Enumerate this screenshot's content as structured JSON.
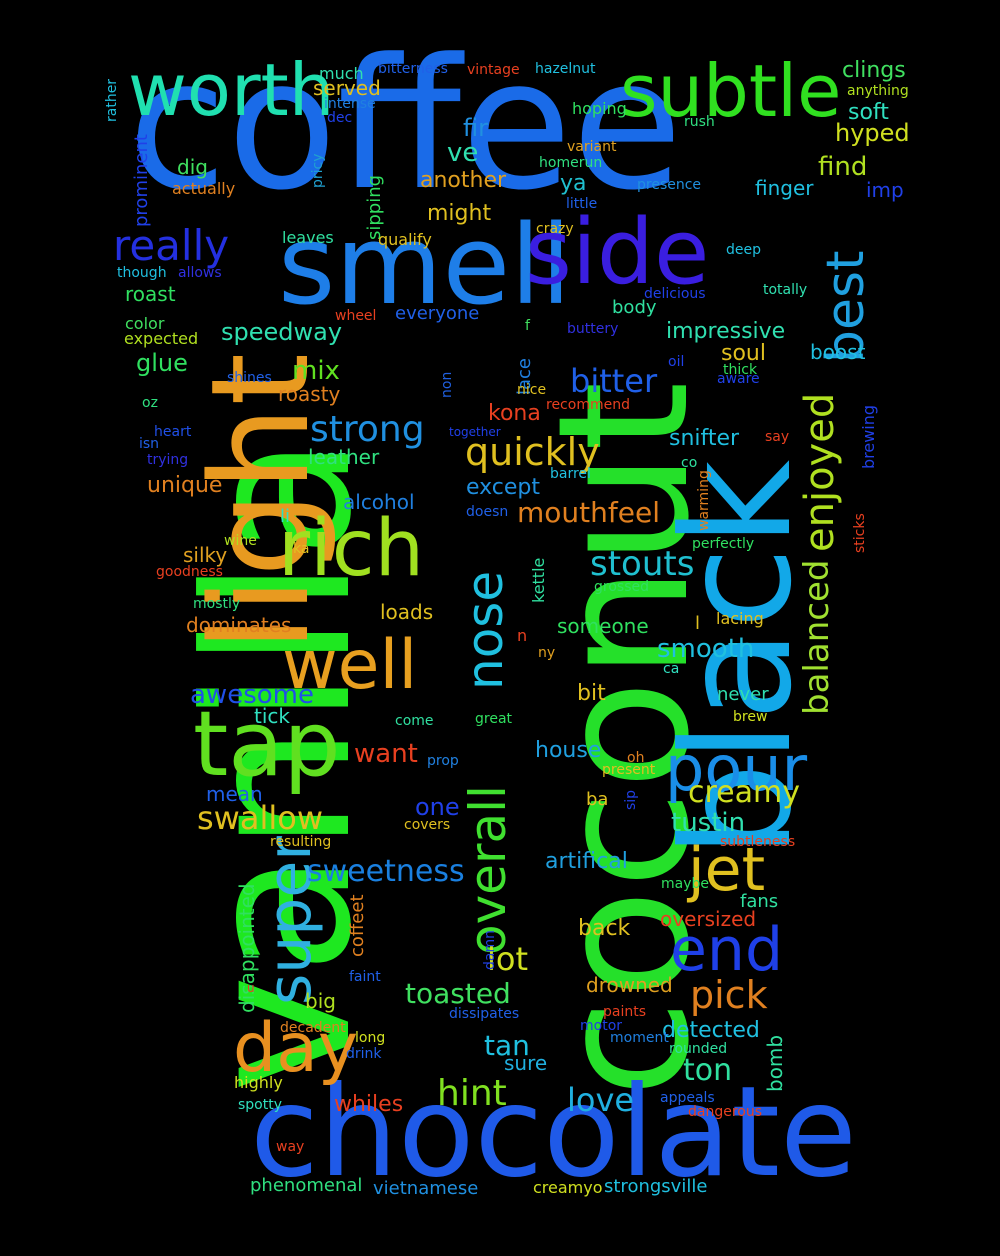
{
  "words": [
    {
      "text": "coffee",
      "color": "#1a6be8",
      "rotate": false
    },
    {
      "text": "vanilla",
      "color": "#1ee820",
      "rotate": true
    },
    {
      "text": "coconut",
      "color": "#25e02a",
      "rotate": true
    },
    {
      "text": "black",
      "color": "#12a8e8",
      "rotate": true
    },
    {
      "text": "chocolate",
      "color": "#1f5ae8",
      "rotate": false
    },
    {
      "text": "light",
      "color": "#e89a20",
      "rotate": true
    },
    {
      "text": "smell",
      "color": "#1e7ee8",
      "rotate": false
    },
    {
      "text": "side",
      "color": "#3a1ee0",
      "rotate": false
    },
    {
      "text": "subtle",
      "color": "#30e020",
      "rotate": false
    },
    {
      "text": "worth",
      "color": "#20e0b0",
      "rotate": false
    },
    {
      "text": "tap",
      "color": "#60e020",
      "rotate": false
    },
    {
      "text": "rich",
      "color": "#a0e020",
      "rotate": false
    },
    {
      "text": "well",
      "color": "#e8a020",
      "rotate": false
    },
    {
      "text": "day",
      "color": "#e89020",
      "rotate": false
    },
    {
      "text": "super",
      "color": "#30b0e0",
      "rotate": true
    },
    {
      "text": "overall",
      "color": "#40e030",
      "rotate": true
    },
    {
      "text": "nose",
      "color": "#20c0e0",
      "rotate": true
    },
    {
      "text": "pour",
      "color": "#1a8ee8",
      "rotate": false
    },
    {
      "text": "jet",
      "color": "#e0c020",
      "rotate": false
    },
    {
      "text": "end",
      "color": "#1f40e8",
      "rotate": false
    },
    {
      "text": "best",
      "color": "#20a0e0",
      "rotate": true
    },
    {
      "text": "really",
      "color": "#2430e0",
      "rotate": false
    },
    {
      "text": "enjoyed",
      "color": "#b0e020",
      "rotate": true
    },
    {
      "text": "balanced",
      "color": "#a0e030",
      "rotate": true
    },
    {
      "text": "strong",
      "color": "#2090e0",
      "rotate": false
    },
    {
      "text": "quickly",
      "color": "#e0c020",
      "rotate": false
    },
    {
      "text": "bitter",
      "color": "#2060e8",
      "rotate": false
    },
    {
      "text": "stouts",
      "color": "#20c0d0",
      "rotate": false
    },
    {
      "text": "mouthfeel",
      "color": "#e08020",
      "rotate": false
    },
    {
      "text": "swallow",
      "color": "#e0c020",
      "rotate": false
    },
    {
      "text": "sweetness",
      "color": "#1a80e0",
      "rotate": false
    },
    {
      "text": "hint",
      "color": "#80e020",
      "rotate": false
    },
    {
      "text": "love",
      "color": "#20b0e0",
      "rotate": false
    },
    {
      "text": "pick",
      "color": "#e08020",
      "rotate": false
    },
    {
      "text": "creamy",
      "color": "#d0e020",
      "rotate": false
    },
    {
      "text": "lot",
      "color": "#d0e020",
      "rotate": false
    },
    {
      "text": "ton",
      "color": "#30e0a0",
      "rotate": false
    },
    {
      "text": "tan",
      "color": "#20c0e0",
      "rotate": false
    },
    {
      "text": "toasted",
      "color": "#40e060",
      "rotate": false
    },
    {
      "text": "awesome",
      "color": "#2050e8",
      "rotate": false
    },
    {
      "text": "smooth",
      "color": "#20c0e0",
      "rotate": false
    },
    {
      "text": "tustin",
      "color": "#30e0b0",
      "rotate": false
    },
    {
      "text": "fir",
      "color": "#2090e0",
      "rotate": false
    },
    {
      "text": "ve",
      "color": "#30e0b0",
      "rotate": false
    },
    {
      "text": "find",
      "color": "#b0e020",
      "rotate": false
    },
    {
      "text": "hyped",
      "color": "#d0e020",
      "rotate": false
    },
    {
      "text": "clings",
      "color": "#40e060",
      "rotate": false
    },
    {
      "text": "soft",
      "color": "#30e0c0",
      "rotate": false
    },
    {
      "text": "mix",
      "color": "#60e020",
      "rotate": false
    },
    {
      "text": "glue",
      "color": "#30e060",
      "rotate": false
    },
    {
      "text": "speedway",
      "color": "#30e0b0",
      "rotate": false
    },
    {
      "text": "impressive",
      "color": "#30e0b0",
      "rotate": false
    },
    {
      "text": "snifter",
      "color": "#20c0e0",
      "rotate": false
    },
    {
      "text": "soul",
      "color": "#e0c020",
      "rotate": false
    },
    {
      "text": "boost",
      "color": "#20c0e0",
      "rotate": false
    },
    {
      "text": "kona",
      "color": "#e84020",
      "rotate": false
    },
    {
      "text": "unique",
      "color": "#e08020",
      "rotate": false
    },
    {
      "text": "except",
      "color": "#2090e0",
      "rotate": false
    },
    {
      "text": "leather",
      "color": "#30e080",
      "rotate": false
    },
    {
      "text": "roasty",
      "color": "#e08020",
      "rotate": false
    },
    {
      "text": "roast",
      "color": "#30e060",
      "rotate": false
    },
    {
      "text": "dig",
      "color": "#40e060",
      "rotate": false
    },
    {
      "text": "another",
      "color": "#e0a020",
      "rotate": false
    },
    {
      "text": "might",
      "color": "#e0c020",
      "rotate": false
    },
    {
      "text": "ya",
      "color": "#20c0d0",
      "rotate": false
    },
    {
      "text": "finger",
      "color": "#20c0e0",
      "rotate": false
    },
    {
      "text": "imp",
      "color": "#2040e8",
      "rotate": false
    },
    {
      "text": "served",
      "color": "#e0c020",
      "rotate": false
    },
    {
      "text": "house",
      "color": "#20a0e0",
      "rotate": false
    },
    {
      "text": "one",
      "color": "#2040e8",
      "rotate": false
    },
    {
      "text": "want",
      "color": "#e84020",
      "rotate": false
    },
    {
      "text": "bit",
      "color": "#e0c020",
      "rotate": false
    },
    {
      "text": "someone",
      "color": "#30e060",
      "rotate": false
    },
    {
      "text": "loads",
      "color": "#e0c020",
      "rotate": false
    },
    {
      "text": "dominates",
      "color": "#e08020",
      "rotate": false
    },
    {
      "text": "silky",
      "color": "#e0a020",
      "rotate": false
    },
    {
      "text": "alcohol",
      "color": "#2080e0",
      "rotate": false
    },
    {
      "text": "artifical",
      "color": "#20a0e0",
      "rotate": false
    },
    {
      "text": "oversized",
      "color": "#e84020",
      "rotate": false
    },
    {
      "text": "drowned",
      "color": "#e0a020",
      "rotate": false
    },
    {
      "text": "detected",
      "color": "#20c0e0",
      "rotate": false
    },
    {
      "text": "back",
      "color": "#e0c020",
      "rotate": false
    },
    {
      "text": "whiles",
      "color": "#e84020",
      "rotate": false
    },
    {
      "text": "big",
      "color": "#b0e020",
      "rotate": false
    },
    {
      "text": "tick",
      "color": "#30e0c0",
      "rotate": false
    },
    {
      "text": "mean",
      "color": "#2060e8",
      "rotate": false
    },
    {
      "text": "sure",
      "color": "#20b0e0",
      "rotate": false
    },
    {
      "text": "fans",
      "color": "#30e0a0",
      "rotate": false
    },
    {
      "text": "never",
      "color": "#30e0b0",
      "rotate": false
    },
    {
      "text": "phenomenal",
      "color": "#30e080",
      "rotate": false
    },
    {
      "text": "vietnamese",
      "color": "#2090e0",
      "rotate": false
    },
    {
      "text": "strongsville",
      "color": "#20c0e0",
      "rotate": false
    },
    {
      "text": "creamyo",
      "color": "#d0e020",
      "rotate": false
    },
    {
      "text": "bomb",
      "color": "#30e0a0",
      "rotate": true
    },
    {
      "text": "disappointed",
      "color": "#30e060",
      "rotate": true
    },
    {
      "text": "coffeet",
      "color": "#e08020",
      "rotate": true
    },
    {
      "text": "prominent",
      "color": "#2040e8",
      "rotate": true
    },
    {
      "text": "sipping",
      "color": "#30e060",
      "rotate": true
    },
    {
      "text": "pricy",
      "color": "#20a0d0",
      "rotate": true
    },
    {
      "text": "rather",
      "color": "#20c0e0",
      "rotate": true
    },
    {
      "text": "lace",
      "color": "#2080e0",
      "rotate": true
    },
    {
      "text": "brewing",
      "color": "#2040e8",
      "rotate": true
    },
    {
      "text": "kettle",
      "color": "#30e0a0",
      "rotate": true
    },
    {
      "text": "non",
      "color": "#2060e0",
      "rotate": true
    },
    {
      "text": "damn",
      "color": "#2040e0",
      "rotate": true
    },
    {
      "text": "warming",
      "color": "#e08020",
      "rotate": true
    },
    {
      "text": "sticks",
      "color": "#e84020",
      "rotate": true
    },
    {
      "text": "sip",
      "color": "#2040e8",
      "rotate": true
    },
    {
      "text": "much",
      "color": "#30e0b0",
      "rotate": false
    },
    {
      "text": "intense",
      "color": "#2080e0",
      "rotate": false
    },
    {
      "text": "dec",
      "color": "#2040e8",
      "rotate": false
    },
    {
      "text": "bitterness",
      "color": "#2060e8",
      "rotate": false
    },
    {
      "text": "vintage",
      "color": "#e84020",
      "rotate": false
    },
    {
      "text": "hazelnut",
      "color": "#20c0e0",
      "rotate": false
    },
    {
      "text": "hoping",
      "color": "#30e060",
      "rotate": false
    },
    {
      "text": "anything",
      "color": "#b0e020",
      "rotate": false
    },
    {
      "text": "rush",
      "color": "#30e080",
      "rotate": false
    },
    {
      "text": "variant",
      "color": "#e0a020",
      "rotate": false
    },
    {
      "text": "homerun",
      "color": "#30e080",
      "rotate": false
    },
    {
      "text": "presence",
      "color": "#2090e0",
      "rotate": false
    },
    {
      "text": "little",
      "color": "#2060e8",
      "rotate": false
    },
    {
      "text": "crazy",
      "color": "#e0c020",
      "rotate": false
    },
    {
      "text": "actually",
      "color": "#e08020",
      "rotate": false
    },
    {
      "text": "qualify",
      "color": "#e0c020",
      "rotate": false
    },
    {
      "text": "leaves",
      "color": "#30e0a0",
      "rotate": false
    },
    {
      "text": "deep",
      "color": "#20c0e0",
      "rotate": false
    },
    {
      "text": "though",
      "color": "#20c0e0",
      "rotate": false
    },
    {
      "text": "allows",
      "color": "#3030e0",
      "rotate": false
    },
    {
      "text": "delicious",
      "color": "#2040e8",
      "rotate": false
    },
    {
      "text": "totally",
      "color": "#30e0b0",
      "rotate": false
    },
    {
      "text": "color",
      "color": "#40e060",
      "rotate": false
    },
    {
      "text": "expected",
      "color": "#b0e020",
      "rotate": false
    },
    {
      "text": "wheel",
      "color": "#e84020",
      "rotate": false
    },
    {
      "text": "everyone",
      "color": "#2060e8",
      "rotate": false
    },
    {
      "text": "body",
      "color": "#30e0a0",
      "rotate": false
    },
    {
      "text": "f",
      "color": "#40e060",
      "rotate": false
    },
    {
      "text": "buttery",
      "color": "#3030e0",
      "rotate": false
    },
    {
      "text": "oil",
      "color": "#2040e8",
      "rotate": false
    },
    {
      "text": "thick",
      "color": "#30e060",
      "rotate": false
    },
    {
      "text": "aware",
      "color": "#2040e8",
      "rotate": false
    },
    {
      "text": "shines",
      "color": "#2060e8",
      "rotate": false
    },
    {
      "text": "nice",
      "color": "#e0c020",
      "rotate": false
    },
    {
      "text": "recommend",
      "color": "#e84020",
      "rotate": false
    },
    {
      "text": "oz",
      "color": "#30e080",
      "rotate": false
    },
    {
      "text": "heart",
      "color": "#2050e8",
      "rotate": false
    },
    {
      "text": "isn",
      "color": "#2060e8",
      "rotate": false
    },
    {
      "text": "trying",
      "color": "#3030e0",
      "rotate": false
    },
    {
      "text": "together",
      "color": "#2040e8",
      "rotate": false
    },
    {
      "text": "say",
      "color": "#e84020",
      "rotate": false
    },
    {
      "text": "co",
      "color": "#30e0a0",
      "rotate": false
    },
    {
      "text": "barrel",
      "color": "#20c0e0",
      "rotate": false
    },
    {
      "text": "li",
      "color": "#30e0c0",
      "rotate": false
    },
    {
      "text": "doesn",
      "color": "#2060e8",
      "rotate": false
    },
    {
      "text": "wine",
      "color": "#b0e020",
      "rotate": false
    },
    {
      "text": "ka",
      "color": "#e0c020",
      "rotate": false
    },
    {
      "text": "goodness",
      "color": "#e84020",
      "rotate": false
    },
    {
      "text": "perfectly",
      "color": "#30e060",
      "rotate": false
    },
    {
      "text": "grossed",
      "color": "#30e060",
      "rotate": false
    },
    {
      "text": "mostly",
      "color": "#30e080",
      "rotate": false
    },
    {
      "text": "l",
      "color": "#e0c020",
      "rotate": false
    },
    {
      "text": "lacing",
      "color": "#e0c020",
      "rotate": false
    },
    {
      "text": "n",
      "color": "#e84020",
      "rotate": false
    },
    {
      "text": "ny",
      "color": "#e0a020",
      "rotate": false
    },
    {
      "text": "ca",
      "color": "#30e0c0",
      "rotate": false
    },
    {
      "text": "come",
      "color": "#30e0a0",
      "rotate": false
    },
    {
      "text": "great",
      "color": "#30e060",
      "rotate": false
    },
    {
      "text": "brew",
      "color": "#d0e020",
      "rotate": false
    },
    {
      "text": "prop",
      "color": "#2080e0",
      "rotate": false
    },
    {
      "text": "oh",
      "color": "#e08020",
      "rotate": false
    },
    {
      "text": "present",
      "color": "#e0c020",
      "rotate": false
    },
    {
      "text": "ba",
      "color": "#e0c020",
      "rotate": false
    },
    {
      "text": "covers",
      "color": "#e0c020",
      "rotate": false
    },
    {
      "text": "resulting",
      "color": "#e0c020",
      "rotate": false
    },
    {
      "text": "subtleness",
      "color": "#e84020",
      "rotate": false
    },
    {
      "text": "maybe",
      "color": "#30e060",
      "rotate": false
    },
    {
      "text": "faint",
      "color": "#2060e8",
      "rotate": false
    },
    {
      "text": "u",
      "color": "#e84020",
      "rotate": false
    },
    {
      "text": "dissipates",
      "color": "#2060e8",
      "rotate": false
    },
    {
      "text": "paints",
      "color": "#e84020",
      "rotate": false
    },
    {
      "text": "motor",
      "color": "#2040e8",
      "rotate": false
    },
    {
      "text": "moment",
      "color": "#2080e0",
      "rotate": false
    },
    {
      "text": "rounded",
      "color": "#30e0a0",
      "rotate": false
    },
    {
      "text": "decadent",
      "color": "#e08020",
      "rotate": false
    },
    {
      "text": "long",
      "color": "#d0e020",
      "rotate": false
    },
    {
      "text": "drink",
      "color": "#2060e8",
      "rotate": false
    },
    {
      "text": "highly",
      "color": "#d0e020",
      "rotate": false
    },
    {
      "text": "appeals",
      "color": "#2060e8",
      "rotate": false
    },
    {
      "text": "dangerous",
      "color": "#e84020",
      "rotate": false
    },
    {
      "text": "spotty",
      "color": "#30e0c0",
      "rotate": false
    },
    {
      "text": "way",
      "color": "#e84020",
      "rotate": false
    }
  ]
}
